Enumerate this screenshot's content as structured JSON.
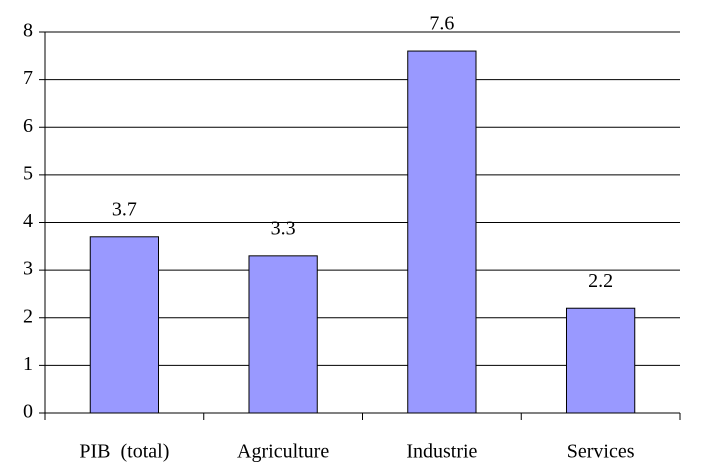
{
  "chart_data": {
    "type": "bar",
    "categories": [
      "PIB  (total)",
      "Agriculture",
      "Industrie",
      "Services"
    ],
    "values": [
      3.7,
      3.3,
      7.6,
      2.2
    ],
    "color": "#9999ff",
    "ylim": [
      0,
      8
    ],
    "yticks": [
      0,
      1,
      2,
      3,
      4,
      5,
      6,
      7,
      8
    ],
    "grid": true
  }
}
